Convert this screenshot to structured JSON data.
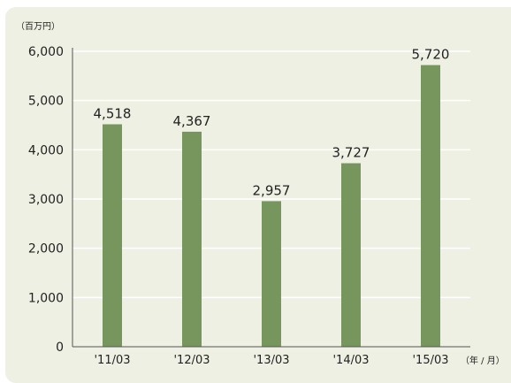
{
  "chart_data": {
    "type": "bar",
    "ylabel": "（百万円）",
    "xlabel": "（年 / 月）",
    "categories": [
      "'11/03",
      "'12/03",
      "'13/03",
      "'14/03",
      "'15/03"
    ],
    "values": [
      4518,
      4367,
      2957,
      3727,
      5720
    ],
    "value_labels": [
      "4,518",
      "4,367",
      "2,957",
      "3,727",
      "5,720"
    ],
    "yticks": [
      "0",
      "1,000",
      "2,000",
      "3,000",
      "4,000",
      "5,000",
      "6,000"
    ],
    "ylim": [
      0,
      6000
    ],
    "ystep": 1000,
    "grid": true,
    "colors": {
      "bar": "#76965e",
      "grid": "#ffffff",
      "axis": "#555555",
      "panel": "#eef0e3"
    }
  }
}
